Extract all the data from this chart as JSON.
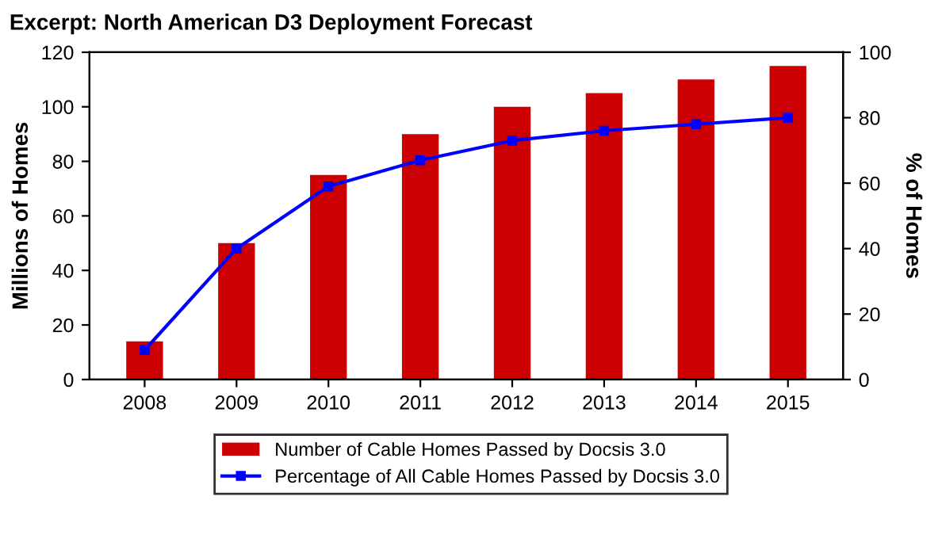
{
  "chart_data": {
    "type": "bar",
    "title": "Excerpt: North American D3 Deployment Forecast",
    "categories": [
      "2008",
      "2009",
      "2010",
      "2011",
      "2012",
      "2013",
      "2014",
      "2015"
    ],
    "series": [
      {
        "name": "Number of Cable Homes Passed by Docsis 3.0",
        "color": "#cc0000",
        "values": [
          14,
          50,
          75,
          90,
          100,
          105,
          110,
          115
        ]
      },
      {
        "name": "Percentage of All Cable Homes Passed by Docsis 3.0",
        "type": "line",
        "axis": "y2",
        "color": "#0000ff",
        "marker": "square",
        "values": [
          9,
          40,
          59,
          67,
          73,
          76,
          78,
          80
        ]
      }
    ],
    "ylabel": "Millions of Homes",
    "y2label": "% of Homes",
    "ylim": [
      0,
      120
    ],
    "yticks": [
      0,
      20,
      40,
      60,
      80,
      100,
      120
    ],
    "y2lim": [
      0,
      100
    ],
    "y2ticks": [
      0,
      20,
      40,
      60,
      80,
      100
    ],
    "grid": false,
    "legend": "bottom"
  }
}
